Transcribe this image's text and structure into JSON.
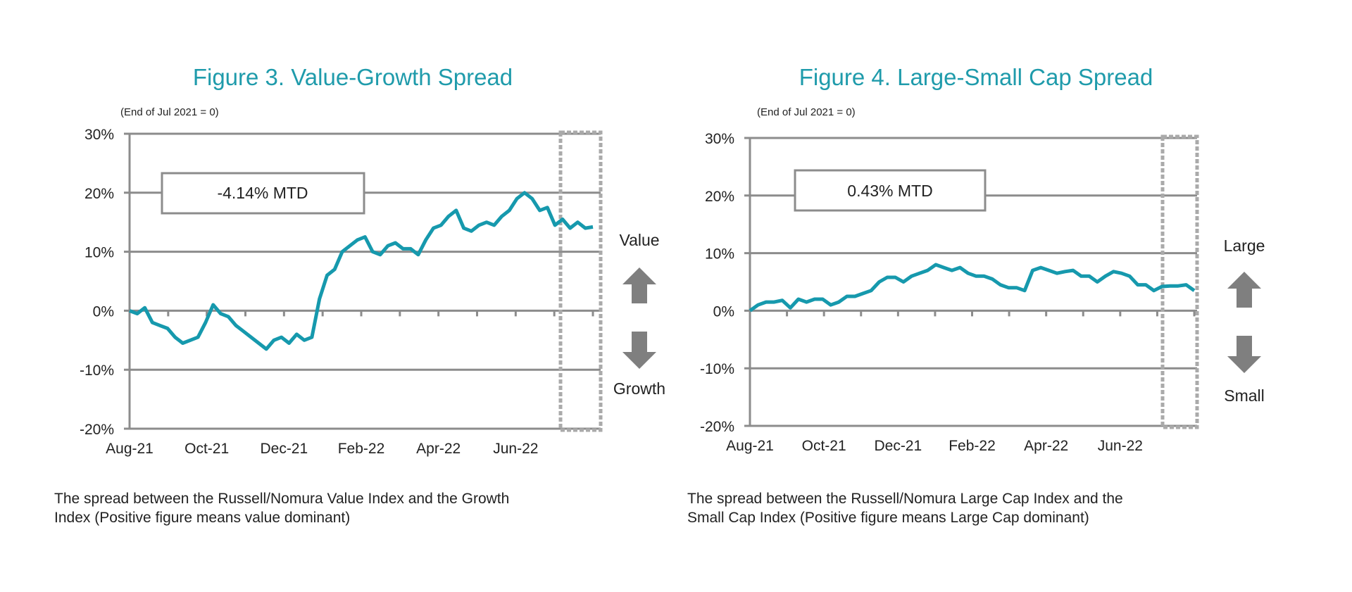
{
  "colors": {
    "title": "#1f9bab",
    "line": "#1699ad",
    "axis": "#8c8c8c",
    "arrow": "#7f7f7f",
    "highlight_box": "#aaaaaa"
  },
  "chart_data": [
    {
      "type": "line",
      "title": "Figure 3. Value-Growth Spread",
      "subtitle": "(End of Jul 2021 = 0)",
      "annotation": "-4.14% MTD",
      "up_label": "Value",
      "down_label": "Growth",
      "caption": [
        "The spread between the Russell/Nomura Value Index and the Growth",
        "Index (Positive figure means value dominant)"
      ],
      "x_tick_labels": [
        "Aug-21",
        "Oct-21",
        "Dec-21",
        "Feb-22",
        "Apr-22",
        "Jun-22"
      ],
      "y_tick_labels": [
        "30%",
        "20%",
        "10%",
        "0%",
        "-10%",
        "-20%"
      ],
      "ylim": [
        -20,
        30
      ],
      "grid": true,
      "x_range": [
        "2021-07-31",
        "2022-07-29"
      ],
      "highlight_period": [
        "2022-07-01",
        "2022-07-31"
      ],
      "series": [
        {
          "values": [
            0,
            -0.5,
            0.5,
            -2,
            -2.5,
            -3,
            -4.5,
            -5.5,
            -5,
            -4.5,
            -2,
            1,
            -0.5,
            -1,
            -2.5,
            -3.5,
            -4.5,
            -5.5,
            -6.5,
            -5,
            -4.5,
            -5.5,
            -4,
            -5,
            -4.5,
            2,
            6,
            7,
            10,
            11,
            12,
            12.5,
            10,
            9.5,
            11,
            11.5,
            10.5,
            10.5,
            9.5,
            12,
            14,
            14.5,
            16,
            17,
            14,
            13.5,
            14.5,
            15,
            14.5,
            16,
            17,
            19,
            20,
            19,
            17,
            17.5,
            14.5,
            15.5,
            14,
            15,
            14,
            14.2
          ]
        }
      ]
    },
    {
      "type": "line",
      "title": "Figure 4. Large-Small Cap Spread",
      "subtitle": "(End of Jul 2021 = 0)",
      "annotation": "0.43% MTD",
      "up_label": "Large",
      "down_label": "Small",
      "caption": [
        "The spread between the Russell/Nomura Large Cap Index and the",
        "Small Cap Index (Positive figure means Large Cap dominant)"
      ],
      "x_tick_labels": [
        "Aug-21",
        "Oct-21",
        "Dec-21",
        "Feb-22",
        "Apr-22",
        "Jun-22"
      ],
      "y_tick_labels": [
        "30%",
        "20%",
        "10%",
        "0%",
        "-10%",
        "-20%"
      ],
      "ylim": [
        -20,
        30
      ],
      "grid": true,
      "x_range": [
        "2021-07-31",
        "2022-07-29"
      ],
      "highlight_period": [
        "2022-07-01",
        "2022-07-31"
      ],
      "series": [
        {
          "values": [
            0,
            1,
            1.5,
            1.5,
            1.8,
            0.5,
            2,
            1.5,
            2,
            2,
            1,
            1.5,
            2.5,
            2.5,
            3,
            3.5,
            5,
            5.8,
            5.8,
            5,
            6,
            6.5,
            7,
            8,
            7.5,
            7,
            7.5,
            6.5,
            6,
            6,
            5.5,
            4.5,
            4,
            4,
            3.5,
            7,
            7.5,
            7,
            6.5,
            6.8,
            7,
            6,
            6,
            5,
            6,
            6.8,
            6.5,
            6,
            4.5,
            4.5,
            3.5,
            4.2,
            4.3,
            4.3,
            4.5,
            3.5
          ]
        }
      ]
    }
  ]
}
